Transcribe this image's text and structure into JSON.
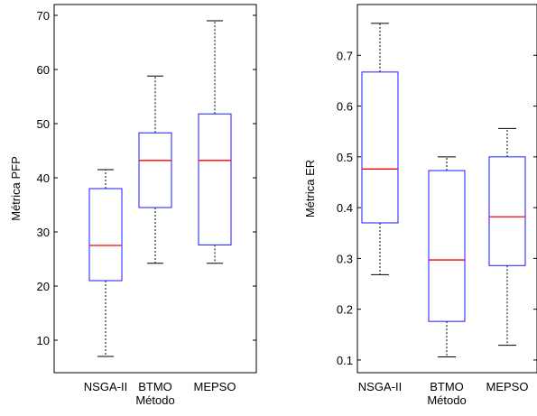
{
  "chart_data": [
    {
      "type": "box",
      "title": "",
      "xlabel": "Método",
      "ylabel": "Métrica PFP",
      "categories": [
        "NSGA-II",
        "BTMO",
        "MEPSO"
      ],
      "ylim": [
        4,
        72
      ],
      "yticks": [
        10,
        20,
        30,
        40,
        50,
        60,
        70
      ],
      "box_color": "#1a1aff",
      "median_color": "#ff0000",
      "whisker_color": "#000000",
      "boxes": [
        {
          "category": "NSGA-II",
          "min": 7,
          "q1": 21,
          "median": 27.5,
          "q3": 38,
          "max": 41.5
        },
        {
          "category": "BTMO",
          "min": 24.2,
          "q1": 34.5,
          "median": 43.2,
          "q3": 48.3,
          "max": 58.8
        },
        {
          "category": "MEPSO",
          "min": 24.2,
          "q1": 27.6,
          "median": 43.2,
          "q3": 51.8,
          "max": 69
        }
      ]
    },
    {
      "type": "box",
      "title": "",
      "xlabel": "Método",
      "ylabel": "Métrica ER",
      "categories": [
        "NSGA-II",
        "BTMO",
        "MEPSO"
      ],
      "ylim": [
        0.075,
        0.8
      ],
      "yticks": [
        0.1,
        0.2,
        0.3,
        0.4,
        0.5,
        0.6,
        0.7
      ],
      "box_color": "#1a1aff",
      "median_color": "#ff0000",
      "whisker_color": "#000000",
      "boxes": [
        {
          "category": "NSGA-II",
          "min": 0.268,
          "q1": 0.37,
          "median": 0.476,
          "q3": 0.667,
          "max": 0.763
        },
        {
          "category": "BTMO",
          "min": 0.106,
          "q1": 0.176,
          "median": 0.297,
          "q3": 0.473,
          "max": 0.5
        },
        {
          "category": "MEPSO",
          "min": 0.129,
          "q1": 0.286,
          "median": 0.382,
          "q3": 0.5,
          "max": 0.556
        }
      ]
    }
  ]
}
